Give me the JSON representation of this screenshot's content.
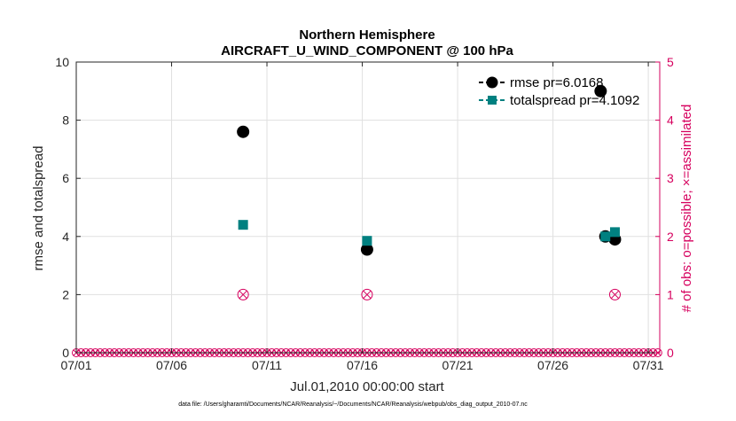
{
  "chart_data": {
    "type": "scatter",
    "title": "Northern Hemisphere",
    "subtitle": "AIRCRAFT_U_WIND_COMPONENT @ 100 hPa",
    "xlabel": "Jul.01,2010 00:00:00 start",
    "ylabel_left": "rmse and totalspread",
    "ylabel_right": "# of obs: o=possible; ×=assimilated",
    "footer": "data file: /Users/gharamti/Documents/NCAR/Reanalysis/~/Documents/NCAR/Reanalysis/webpub/obs_diag_output_2010-07.nc",
    "xlim": [
      0,
      30.6
    ],
    "ylim_left": [
      0,
      10
    ],
    "ylim_right": [
      0,
      5
    ],
    "x_ticks": [
      {
        "x": 0,
        "label": "07/01"
      },
      {
        "x": 5,
        "label": "07/06"
      },
      {
        "x": 10,
        "label": "07/11"
      },
      {
        "x": 15,
        "label": "07/16"
      },
      {
        "x": 20,
        "label": "07/21"
      },
      {
        "x": 25,
        "label": "07/26"
      },
      {
        "x": 30,
        "label": "07/31"
      }
    ],
    "y_ticks_left": [
      "0",
      "2",
      "4",
      "6",
      "8",
      "10"
    ],
    "y_ticks_right": [
      "0",
      "1",
      "2",
      "3",
      "4",
      "5"
    ],
    "legend": {
      "position": "top-right",
      "entries": [
        "rmse pr=6.0168",
        "totalspread pr=4.1092"
      ]
    },
    "series": [
      {
        "name": "rmse",
        "color": "#000000",
        "marker": "circle",
        "points": [
          [
            8.75,
            7.6
          ],
          [
            15.25,
            3.55
          ],
          [
            27.5,
            9.0
          ],
          [
            27.75,
            4.0
          ],
          [
            28.25,
            3.9
          ]
        ]
      },
      {
        "name": "totalspread",
        "color": "#008080",
        "marker": "square",
        "points": [
          [
            8.75,
            4.4
          ],
          [
            15.25,
            3.85
          ],
          [
            27.75,
            4.0
          ],
          [
            28.25,
            4.15
          ]
        ]
      }
    ],
    "obs_count": {
      "color": "#d6005e",
      "points": [
        [
          8.75,
          1
        ],
        [
          15.25,
          1
        ],
        [
          28.25,
          1
        ],
        [
          27.75,
          2
        ]
      ]
    },
    "grid": true
  }
}
